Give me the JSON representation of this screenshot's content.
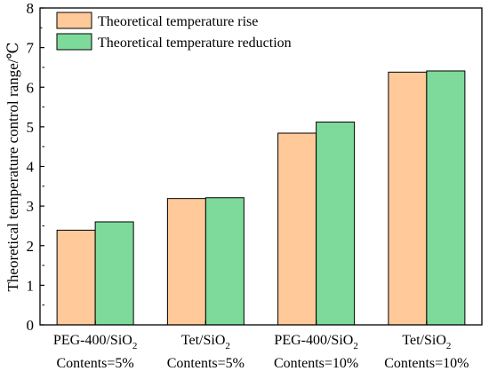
{
  "chart_data": {
    "type": "bar",
    "ylabel": "Theoretical temperature control range/℃",
    "ylim": [
      0,
      8
    ],
    "yticks": [
      "0",
      "1",
      "2",
      "3",
      "4",
      "5",
      "6",
      "7",
      "8"
    ],
    "categories": [
      {
        "line1_base": "PEG-400/SiO",
        "line1_sub": "2",
        "line2": "Contents=5%"
      },
      {
        "line1_base": "Tet/SiO",
        "line1_sub": "2",
        "line2": "Contents=5%"
      },
      {
        "line1_base": "PEG-400/SiO",
        "line1_sub": "2",
        "line2": "Contents=10%"
      },
      {
        "line1_base": "Tet/SiO",
        "line1_sub": "2",
        "line2": "Contents=10%"
      }
    ],
    "series": [
      {
        "name": "Theoretical temperature rise",
        "color": "#FFC999",
        "values": [
          2.39,
          3.19,
          4.84,
          6.38
        ]
      },
      {
        "name": "Theoretical temperature reduction",
        "color": "#7DDA9B",
        "values": [
          2.6,
          3.21,
          5.12,
          6.41
        ]
      }
    ],
    "legend_position": "top-left",
    "grid": false
  }
}
